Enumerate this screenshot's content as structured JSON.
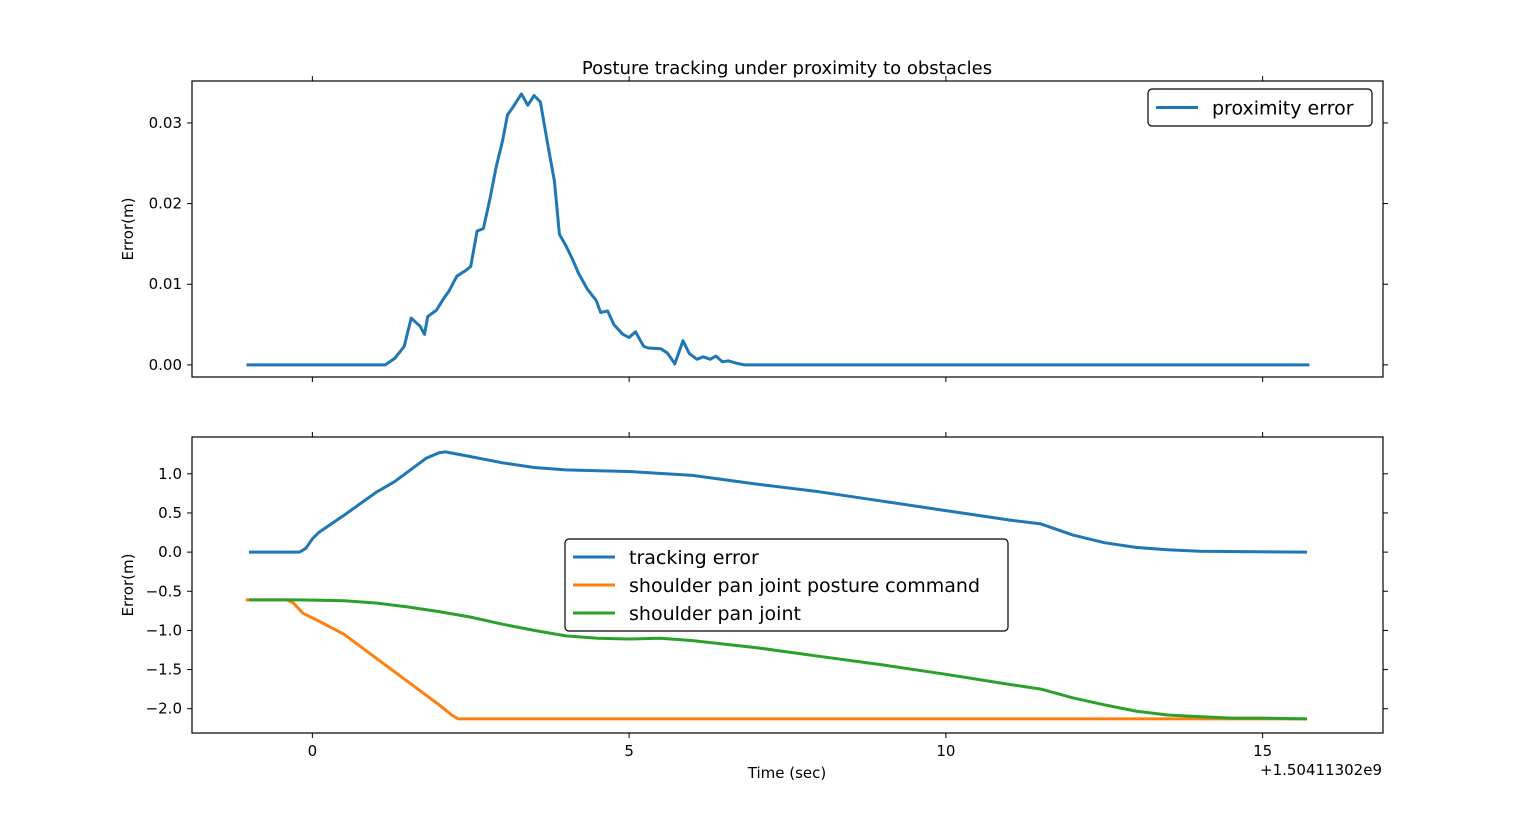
{
  "figure_title": "Posture tracking under proximity to obstacles",
  "x_offset_label": "+1.50411302e9",
  "chart_data": [
    {
      "type": "line",
      "title": "Posture tracking under proximity to obstacles",
      "xlabel": "",
      "ylabel": "Error(m)",
      "xlim": [
        -1.9,
        16.9
      ],
      "ylim": [
        -0.0015,
        0.0352
      ],
      "xticks": [
        0,
        5,
        10,
        15
      ],
      "yticks": [
        0.0,
        0.01,
        0.02,
        0.03
      ],
      "ytick_labels": [
        "0.00",
        "0.01",
        "0.02",
        "0.03"
      ],
      "legend_position": "upper right",
      "grid": false,
      "series": [
        {
          "name": "proximity error",
          "color": "#1f77b4",
          "points": [
            [
              -1.04,
              0.0
            ],
            [
              1.15,
              0.0
            ],
            [
              1.3,
              0.0008
            ],
            [
              1.45,
              0.0023
            ],
            [
              1.56,
              0.0058
            ],
            [
              1.7,
              0.0048
            ],
            [
              1.77,
              0.0038
            ],
            [
              1.82,
              0.006
            ],
            [
              1.96,
              0.0068
            ],
            [
              2.07,
              0.0082
            ],
            [
              2.16,
              0.0092
            ],
            [
              2.28,
              0.011
            ],
            [
              2.42,
              0.0117
            ],
            [
              2.5,
              0.0122
            ],
            [
              2.6,
              0.0166
            ],
            [
              2.7,
              0.0169
            ],
            [
              2.8,
              0.0205
            ],
            [
              2.9,
              0.0245
            ],
            [
              3.0,
              0.0277
            ],
            [
              3.08,
              0.031
            ],
            [
              3.17,
              0.032
            ],
            [
              3.3,
              0.0336
            ],
            [
              3.4,
              0.0322
            ],
            [
              3.5,
              0.0334
            ],
            [
              3.6,
              0.0326
            ],
            [
              3.7,
              0.028
            ],
            [
              3.82,
              0.0228
            ],
            [
              3.9,
              0.0162
            ],
            [
              4.0,
              0.0148
            ],
            [
              4.1,
              0.0132
            ],
            [
              4.2,
              0.0114
            ],
            [
              4.34,
              0.0094
            ],
            [
              4.48,
              0.008
            ],
            [
              4.55,
              0.0065
            ],
            [
              4.66,
              0.0067
            ],
            [
              4.76,
              0.005
            ],
            [
              4.9,
              0.0038
            ],
            [
              5.0,
              0.0034
            ],
            [
              5.1,
              0.0041
            ],
            [
              5.23,
              0.0023
            ],
            [
              5.3,
              0.0021
            ],
            [
              5.5,
              0.002
            ],
            [
              5.6,
              0.0015
            ],
            [
              5.7,
              0.0004
            ],
            [
              5.72,
              0.0001
            ],
            [
              5.85,
              0.003
            ],
            [
              5.95,
              0.0014
            ],
            [
              6.07,
              0.0007
            ],
            [
              6.17,
              0.001
            ],
            [
              6.28,
              0.0007
            ],
            [
              6.37,
              0.0011
            ],
            [
              6.47,
              0.0004
            ],
            [
              6.57,
              0.0005
            ],
            [
              6.7,
              0.0002
            ],
            [
              6.82,
              0.0
            ],
            [
              15.74,
              0.0
            ]
          ]
        }
      ]
    },
    {
      "type": "line",
      "title": "",
      "xlabel": "Time (sec)",
      "ylabel": "Error(m)",
      "xlim": [
        -1.9,
        16.9
      ],
      "ylim": [
        -2.31,
        1.47
      ],
      "xticks": [
        0,
        5,
        10,
        15
      ],
      "yticks": [
        1.0,
        0.5,
        0.0,
        -0.5,
        -1.0,
        -1.5,
        -2.0
      ],
      "ytick_labels": [
        "1.0",
        "0.5",
        "0.0",
        "−0.5",
        "−1.0",
        "−1.5",
        "−2.0"
      ],
      "legend_position": "center",
      "grid": false,
      "series": [
        {
          "name": "tracking error",
          "color": "#1f77b4",
          "points": [
            [
              -1.0,
              0.0
            ],
            [
              -0.2,
              0.0
            ],
            [
              -0.1,
              0.05
            ],
            [
              0.0,
              0.17
            ],
            [
              0.1,
              0.25
            ],
            [
              0.5,
              0.47
            ],
            [
              1.0,
              0.76
            ],
            [
              1.3,
              0.9
            ],
            [
              1.8,
              1.2
            ],
            [
              2.0,
              1.27
            ],
            [
              2.1,
              1.28
            ],
            [
              2.5,
              1.22
            ],
            [
              3.0,
              1.14
            ],
            [
              3.5,
              1.08
            ],
            [
              4.0,
              1.05
            ],
            [
              4.5,
              1.04
            ],
            [
              5.0,
              1.03
            ],
            [
              6.0,
              0.98
            ],
            [
              7.0,
              0.87
            ],
            [
              8.0,
              0.77
            ],
            [
              9.0,
              0.65
            ],
            [
              10.0,
              0.53
            ],
            [
              11.0,
              0.41
            ],
            [
              11.5,
              0.36
            ],
            [
              12.0,
              0.22
            ],
            [
              12.5,
              0.12
            ],
            [
              13.0,
              0.06
            ],
            [
              13.5,
              0.03
            ],
            [
              14.0,
              0.01
            ],
            [
              15.7,
              0.0
            ]
          ]
        },
        {
          "name": "shoulder pan joint posture command",
          "color": "#ff7f0e",
          "points": [
            [
              -1.05,
              -0.61
            ],
            [
              -0.4,
              -0.61
            ],
            [
              -0.3,
              -0.65
            ],
            [
              -0.15,
              -0.78
            ],
            [
              0.1,
              -0.88
            ],
            [
              0.5,
              -1.05
            ],
            [
              1.0,
              -1.35
            ],
            [
              1.5,
              -1.65
            ],
            [
              2.0,
              -1.95
            ],
            [
              2.2,
              -2.08
            ],
            [
              2.3,
              -2.13
            ],
            [
              15.7,
              -2.13
            ]
          ]
        },
        {
          "name": "shoulder pan joint",
          "color": "#2ca02c",
          "points": [
            [
              -1.0,
              -0.61
            ],
            [
              -0.2,
              -0.61
            ],
            [
              0.5,
              -0.62
            ],
            [
              1.0,
              -0.65
            ],
            [
              1.5,
              -0.7
            ],
            [
              2.0,
              -0.76
            ],
            [
              2.5,
              -0.83
            ],
            [
              3.0,
              -0.92
            ],
            [
              3.5,
              -1.0
            ],
            [
              4.0,
              -1.07
            ],
            [
              4.5,
              -1.1
            ],
            [
              5.0,
              -1.11
            ],
            [
              5.5,
              -1.1
            ],
            [
              6.0,
              -1.13
            ],
            [
              7.0,
              -1.22
            ],
            [
              8.0,
              -1.33
            ],
            [
              9.0,
              -1.44
            ],
            [
              10.0,
              -1.56
            ],
            [
              11.0,
              -1.69
            ],
            [
              11.5,
              -1.75
            ],
            [
              12.0,
              -1.86
            ],
            [
              12.5,
              -1.95
            ],
            [
              13.0,
              -2.03
            ],
            [
              13.5,
              -2.08
            ],
            [
              14.0,
              -2.1
            ],
            [
              14.5,
              -2.12
            ],
            [
              15.0,
              -2.12
            ],
            [
              15.7,
              -2.13
            ]
          ]
        }
      ]
    }
  ]
}
